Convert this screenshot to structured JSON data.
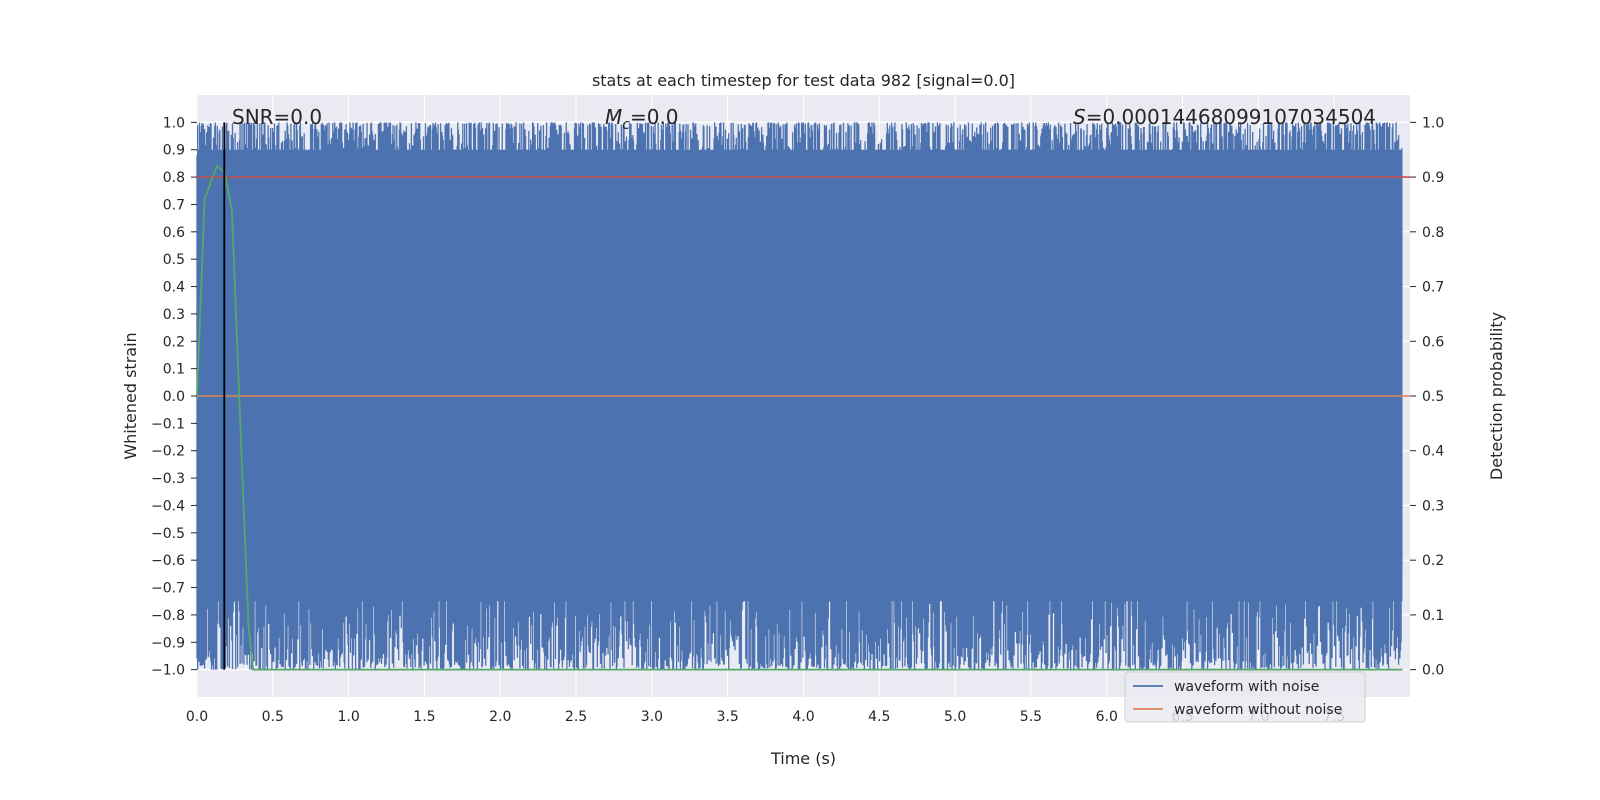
{
  "chart_data": {
    "type": "line",
    "title": "stats at each timestep for test data 982 [signal=0.0]",
    "xlabel": "Time (s)",
    "ylabel": "Whitened strain",
    "ylabel_right": "Detection probability",
    "xlim": [
      0.0,
      8.0
    ],
    "ylim": [
      -1.1,
      1.1
    ],
    "ylim_right": [
      -0.05,
      1.05
    ],
    "x_ticks": [
      "0.0",
      "0.5",
      "1.0",
      "1.5",
      "2.0",
      "2.5",
      "3.0",
      "3.5",
      "4.0",
      "4.5",
      "5.0",
      "5.5",
      "6.0",
      "6.5",
      "7.0",
      "7.5"
    ],
    "x_tick_values": [
      0.0,
      0.5,
      1.0,
      1.5,
      2.0,
      2.5,
      3.0,
      3.5,
      4.0,
      4.5,
      5.0,
      5.5,
      6.0,
      6.5,
      7.0,
      7.5
    ],
    "y_ticks": [
      "1.0",
      "0.9",
      "0.8",
      "0.7",
      "0.6",
      "0.5",
      "0.4",
      "0.3",
      "0.2",
      "0.1",
      "0.0",
      "−0.1",
      "−0.2",
      "−0.3",
      "−0.4",
      "−0.5",
      "−0.6",
      "−0.7",
      "−0.8",
      "−0.9",
      "−1.0"
    ],
    "y_tick_values": [
      1.0,
      0.9,
      0.8,
      0.7,
      0.6,
      0.5,
      0.4,
      0.3,
      0.2,
      0.1,
      0.0,
      -0.1,
      -0.2,
      -0.3,
      -0.4,
      -0.5,
      -0.6,
      -0.7,
      -0.8,
      -0.9,
      -1.0
    ],
    "y_right_ticks": [
      "1.0",
      "0.9",
      "0.8",
      "0.7",
      "0.6",
      "0.5",
      "0.4",
      "0.3",
      "0.2",
      "0.1",
      "0.0"
    ],
    "y_right_tick_values": [
      1.0,
      0.9,
      0.8,
      0.7,
      0.6,
      0.5,
      0.4,
      0.3,
      0.2,
      0.1,
      0.0
    ],
    "grid": true,
    "legend_position": "bottom-right",
    "series": [
      {
        "name": "waveform with noise",
        "color": "#4c72b0",
        "axis": "left",
        "style": "dense noise filling approximately -1.0 to 1.0"
      },
      {
        "name": "waveform without noise",
        "color": "#dd8452",
        "axis": "left",
        "x": [
          0.0,
          8.0
        ],
        "values": [
          0.0,
          0.0
        ]
      },
      {
        "axis": "right",
        "color": "#55a868",
        "x": [
          0.0,
          0.05,
          0.13,
          0.18,
          0.23,
          0.3,
          0.34,
          0.37,
          0.5,
          7.95
        ],
        "values": [
          0.5,
          0.86,
          0.92,
          0.91,
          0.84,
          0.35,
          0.08,
          0.0,
          0.0,
          0.0
        ]
      },
      {
        "axis": "right",
        "color": "#c44e52",
        "x": [
          0.0,
          8.0
        ],
        "values": [
          0.9,
          0.9
        ]
      }
    ],
    "vertical_line": {
      "x": 0.18,
      "color": "#000000"
    },
    "annotations": {
      "snr": "SNR=0.0",
      "mc_symbol": "M",
      "mc_sub": "c",
      "mc_value": "=0.0",
      "s_symbol": "S",
      "s_value": "=0.00014468099107034504"
    },
    "colors": {
      "plot_bg": "#eaeaf2",
      "grid": "#ffffff",
      "text": "#262626"
    }
  }
}
